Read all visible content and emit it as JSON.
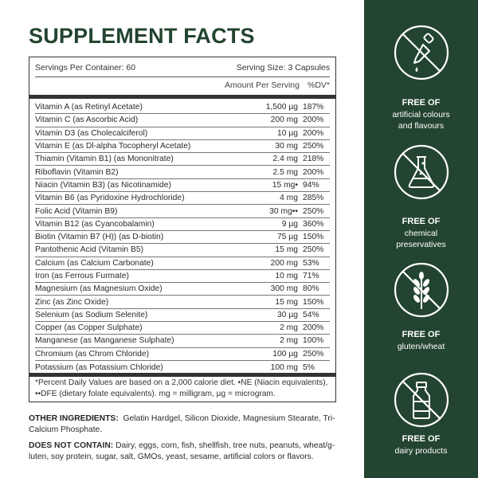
{
  "title": "SUPPLEMENT FACTS",
  "facts": {
    "servings_per_container": "Servings Per Container: 60",
    "serving_size": "Serving Size: 3 Capsules",
    "amount_header": "Amount Per Serving",
    "dv_header": "%DV*",
    "rows": [
      {
        "name": "Vitamin A (as Retinyl Acetate)",
        "amount": "1,500 µg",
        "dv": "187%"
      },
      {
        "name": "Vitamin C (as Ascorbic Acid)",
        "amount": "200 mg",
        "dv": "200%"
      },
      {
        "name": "Vitamin D3 (as Cholecalciferol)",
        "amount": "10 µg",
        "dv": "200%"
      },
      {
        "name": "Vitamin E (as Dl-alpha Tocopheryl Acetate)",
        "amount": "30 mg",
        "dv": "250%"
      },
      {
        "name": "Thiamin (Vitamin B1) (as Mononitrate)",
        "amount": "2.4 mg",
        "dv": "218%"
      },
      {
        "name": "Riboflavin (Vitamin B2)",
        "amount": "2.5 mg",
        "dv": "200%"
      },
      {
        "name": "Niacin (Vitamin B3) (as Nicotinamide)",
        "amount": "15 mg•",
        "dv": "94%"
      },
      {
        "name": "Vitamin B6 (as Pyridoxine Hydrochloride)",
        "amount": "4 mg",
        "dv": "285%"
      },
      {
        "name": "Folic Acid (Vitamin B9)",
        "amount": "30 mg••",
        "dv": "250%"
      },
      {
        "name": "Vitamin B12 (as Cyancobalamin)",
        "amount": "9 µg",
        "dv": "360%"
      },
      {
        "name": "Biotin (Vitamin B7 (H)) (as D-biotin)",
        "amount": "75 µg",
        "dv": "150%"
      },
      {
        "name": "Pantothenic Acid (Vitamin B5)",
        "amount": "15 mg",
        "dv": "250%"
      },
      {
        "name": "Calcium (as Calcium Carbonate)",
        "amount": "200 mg",
        "dv": "53%"
      },
      {
        "name": "Iron (as Ferrous Furmate)",
        "amount": "10 mg",
        "dv": "71%"
      },
      {
        "name": "Magnesium (as Magnesium Oxide)",
        "amount": "300 mg",
        "dv": "80%"
      },
      {
        "name": "Zinc (as Zinc Oxide)",
        "amount": "15 mg",
        "dv": "150%"
      },
      {
        "name": "Selenium (as Sodium Selenite)",
        "amount": "30 µg",
        "dv": "54%"
      },
      {
        "name": "Copper (as Copper Sulphate)",
        "amount": "2 mg",
        "dv": "200%"
      },
      {
        "name": "Manganese (as Manganese Sulphate)",
        "amount": "2 mg",
        "dv": "100%"
      },
      {
        "name": "Chromium (as Chrom Chloride)",
        "amount": "100 µg",
        "dv": "250%"
      },
      {
        "name": "Potassium (as Potassium Chloride)",
        "amount": "100 mg",
        "dv": "5%"
      }
    ],
    "footnote": "*Percent Daily Values are based on a 2,000 calorie diet. •NE (Niacin equivalents), ••DFE (dietary folate equivalents). mg = milligram, µg = microgram."
  },
  "other_ingredients": {
    "label": "OTHER INGREDIENTS:",
    "text": "Gelatin Hardgel, Silicon Dioxide, Magnesium Stearate, Tri-Calcium Phosphate."
  },
  "does_not_contain": {
    "label": "DOES NOT CONTAIN:",
    "text": "Dairy, eggs, corn, fish, shellfish, tree nuts, peanuts, wheat/g-luten, soy protein, sugar, salt, GMOs, yeast, sesame, artificial colors or flavors."
  },
  "badges": [
    {
      "icon": "dropper-crossed-icon",
      "title": "FREE OF",
      "sub1": "artificial colours",
      "sub2": "and flavours"
    },
    {
      "icon": "flask-crossed-icon",
      "title": "FREE OF",
      "sub1": "chemical",
      "sub2": "preservatives"
    },
    {
      "icon": "wheat-crossed-icon",
      "title": "FREE OF",
      "sub1": "gluten/wheat",
      "sub2": ""
    },
    {
      "icon": "milk-bottle-crossed-icon",
      "title": "FREE OF",
      "sub1": "dairy products",
      "sub2": ""
    }
  ],
  "colors": {
    "brand_green": "#234430",
    "text": "#2b2b2b"
  }
}
